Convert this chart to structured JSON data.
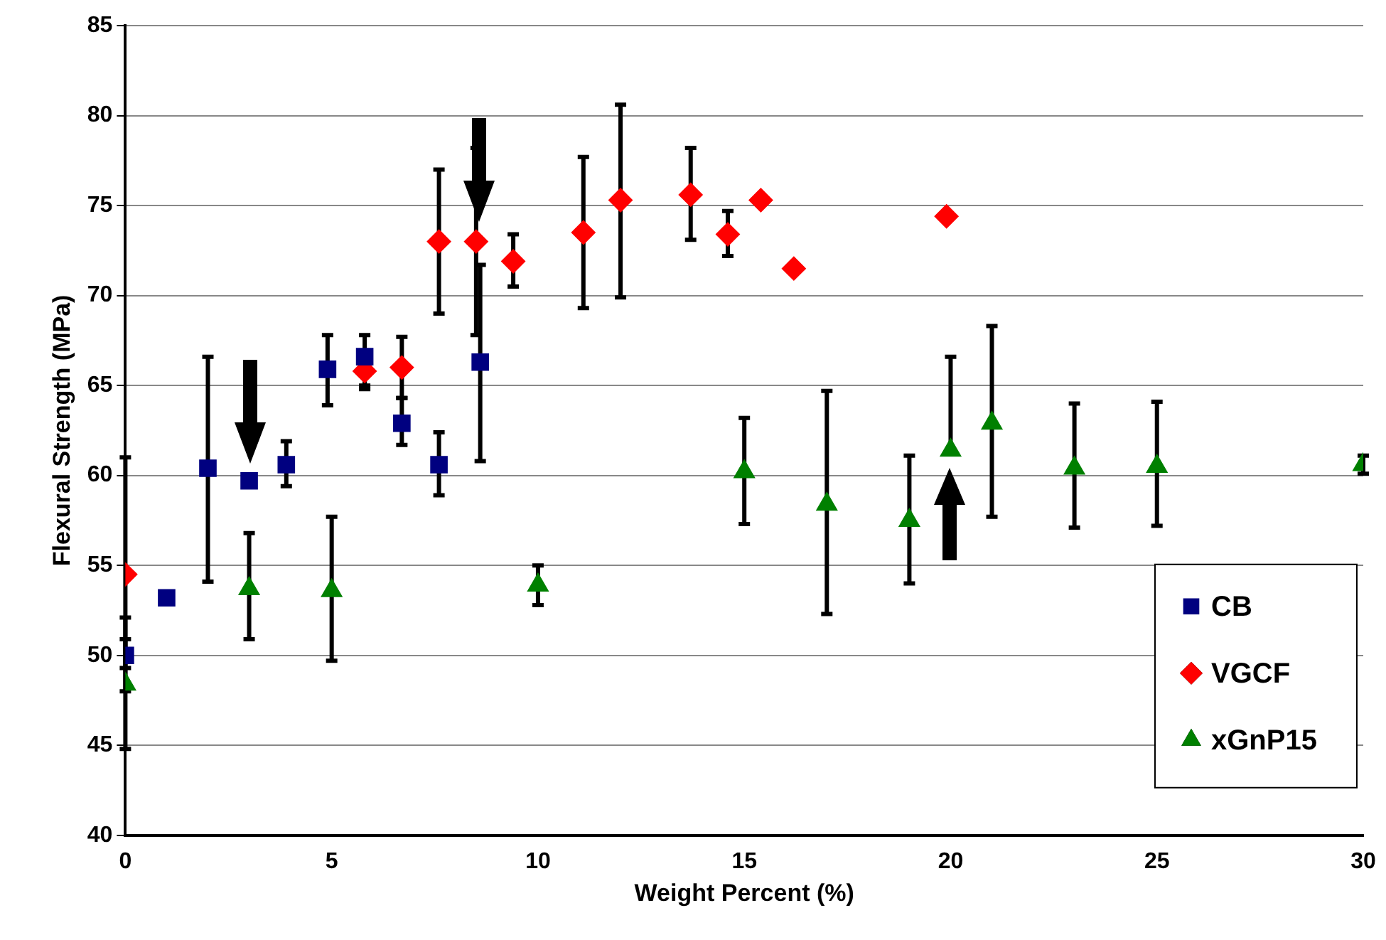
{
  "chart_data": {
    "type": "scatter",
    "xlabel": "Weight Percent (%)",
    "ylabel": "Flexural Strength (MPa)",
    "xlim": [
      0,
      30
    ],
    "xticks": [
      0,
      5,
      10,
      15,
      20,
      25,
      30
    ],
    "ylim": [
      40,
      85
    ],
    "yticks": [
      40,
      45,
      50,
      55,
      60,
      65,
      70,
      75,
      80,
      85
    ],
    "grid": "y",
    "legend": "bottom right",
    "series": [
      {
        "name": "CB",
        "color": "#000080",
        "marker": "square",
        "x": [
          0,
          1,
          2,
          3,
          3.9,
          4.9,
          5.8,
          6.7,
          7.6,
          8.6
        ],
        "values": [
          50,
          53.2,
          60.4,
          59.7,
          60.6,
          65.9,
          66.6,
          62.9,
          60.6,
          66.3
        ],
        "errors": [
          [
            49.3,
            50.9
          ],
          null,
          [
            54.1,
            66.6
          ],
          null,
          [
            59.4,
            61.9
          ],
          [
            63.9,
            67.8
          ],
          [
            65.0,
            67.8
          ],
          [
            61.7,
            64.3
          ],
          [
            58.9,
            62.4
          ],
          [
            60.8,
            71.7
          ]
        ]
      },
      {
        "name": "VGCF",
        "color": "#ff0000",
        "marker": "diamond",
        "x": [
          0,
          5.8,
          6.7,
          7.6,
          8.5,
          9.4,
          11.1,
          12,
          13.7,
          14.6,
          15.4,
          16.2,
          19.9
        ],
        "values": [
          54.5,
          65.8,
          66.0,
          73.0,
          73.0,
          71.9,
          73.5,
          75.3,
          75.6,
          73.4,
          75.3,
          71.5,
          74.4
        ],
        "errors": [
          [
            48,
            61
          ],
          [
            64.8,
            65.8
          ],
          [
            64.3,
            67.7
          ],
          [
            69.0,
            77.0
          ],
          [
            67.8,
            78.2
          ],
          [
            70.5,
            73.4
          ],
          [
            69.3,
            77.7
          ],
          [
            69.9,
            80.6
          ],
          [
            73.1,
            78.2
          ],
          [
            72.2,
            74.7
          ],
          null,
          null,
          null
        ]
      },
      {
        "name": "xGnP15",
        "color": "#008000",
        "marker": "triangle",
        "x": [
          0,
          3,
          5,
          10,
          15,
          17,
          19,
          20,
          21,
          23,
          25,
          30
        ],
        "values": [
          48.4,
          53.7,
          53.6,
          53.9,
          60.2,
          58.4,
          57.5,
          61.4,
          62.9,
          60.4,
          60.5,
          60.6
        ],
        "errors": [
          [
            44.8,
            52.1
          ],
          [
            50.9,
            56.8
          ],
          [
            49.7,
            57.7
          ],
          [
            52.8,
            55.0
          ],
          [
            57.3,
            63.2
          ],
          [
            52.3,
            64.7
          ],
          [
            54.0,
            61.1
          ],
          [
            61.4,
            66.6
          ],
          [
            57.7,
            68.3
          ],
          [
            57.1,
            64.0
          ],
          [
            57.2,
            64.1
          ],
          [
            60.1,
            61.1
          ]
        ]
      }
    ]
  }
}
